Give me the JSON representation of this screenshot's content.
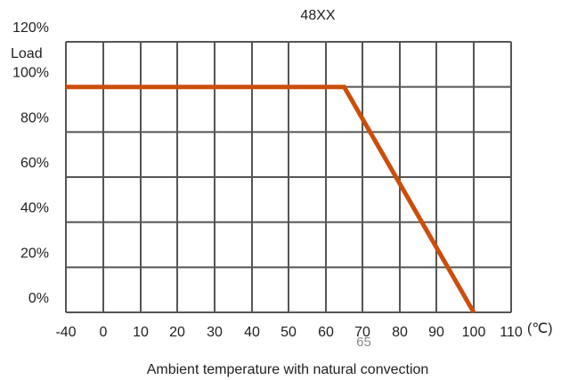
{
  "chart_data": {
    "type": "line",
    "title": "48XX",
    "ylabel": "Load",
    "xlabel": "Ambient temperature with natural convection",
    "x_unit": "(℃)",
    "xlim": [
      -40,
      110
    ],
    "ylim": [
      0,
      120
    ],
    "x_ticks": [
      -40,
      0,
      10,
      20,
      30,
      40,
      50,
      60,
      70,
      80,
      90,
      100,
      110
    ],
    "x_tick_labels": [
      "-40",
      "0",
      "10",
      "20",
      "30",
      "40",
      "50",
      "60",
      "70",
      "80",
      "90",
      "100",
      "110"
    ],
    "y_ticks": [
      0,
      20,
      40,
      60,
      80,
      100,
      120
    ],
    "y_tick_labels": [
      "0%",
      "20%",
      "40%",
      "60%",
      "80%",
      "100%",
      "120%"
    ],
    "grid": true,
    "series": [
      {
        "color": "#cc4e0b",
        "x": [
          -40,
          65,
          100
        ],
        "y": [
          100,
          100,
          0
        ]
      }
    ],
    "annotations": [
      {
        "text": "65",
        "x": 65
      }
    ]
  }
}
